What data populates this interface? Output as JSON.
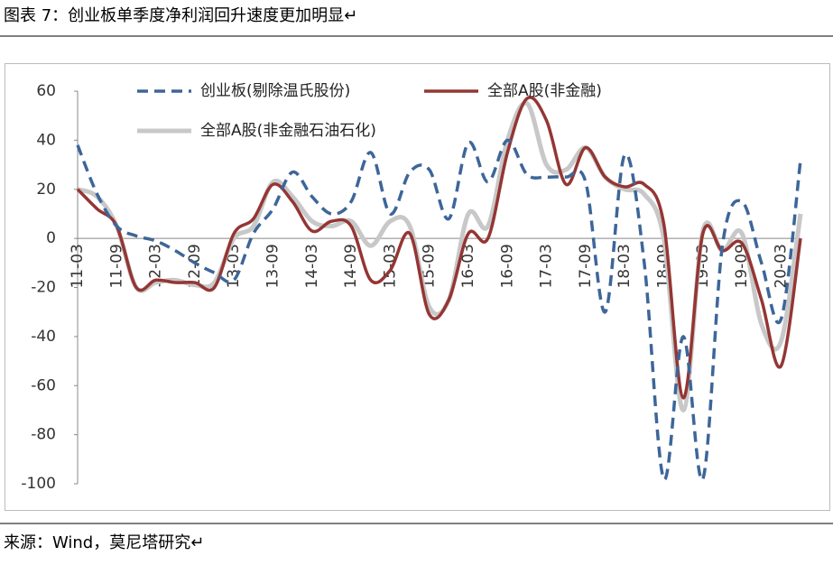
{
  "title": "图表 7：创业板单季度净利润回升速度更加明显↵",
  "source": "来源：Wind，莫尼塔研究↵",
  "chart_data": {
    "type": "line",
    "categories": [
      "11-03",
      null,
      "11-09",
      null,
      "12-03",
      null,
      "12-09",
      null,
      "13-03",
      null,
      "13-09",
      null,
      "14-03",
      null,
      "14-09",
      null,
      "15-03",
      null,
      "15-09",
      null,
      "16-03",
      null,
      "16-09",
      null,
      "17-03",
      null,
      "17-09",
      null,
      "18-03",
      null,
      "18-09",
      null,
      "19-03",
      null,
      "19-09",
      null,
      "20-03",
      null
    ],
    "series": [
      {
        "name": "创业板(剔除温氏股份)",
        "color": "#3d6699",
        "dash": true,
        "values": [
          38,
          18,
          5,
          1,
          -1,
          -5,
          -10,
          -14,
          -17,
          2,
          12,
          27,
          17,
          10,
          15,
          35,
          10,
          27,
          28,
          8,
          39,
          23,
          40,
          26,
          25,
          25,
          23,
          -30,
          34,
          -10,
          -98,
          -40,
          -98,
          -3,
          15,
          -10,
          -33,
          32
        ]
      },
      {
        "name": "全部A股(非金融)",
        "color": "#943634",
        "dash": false,
        "values": [
          20,
          12,
          5,
          -20,
          -17,
          -18,
          -18,
          -20,
          2,
          8,
          22,
          15,
          3,
          7,
          5,
          -17,
          -13,
          2,
          -31,
          -25,
          2,
          0,
          35,
          57,
          48,
          22,
          37,
          25,
          21,
          22,
          6,
          -65,
          2,
          -5,
          -2,
          -25,
          -52,
          0
        ]
      },
      {
        "name": "全部A股(非金融石油石化)",
        "color": "#c8c8c8",
        "dash": false,
        "values": [
          20,
          17,
          5,
          -20,
          -18,
          -17,
          -19,
          -18,
          0,
          5,
          23,
          17,
          7,
          5,
          7,
          -3,
          7,
          5,
          -28,
          -25,
          10,
          5,
          40,
          55,
          30,
          28,
          37,
          25,
          20,
          18,
          0,
          -70,
          3,
          -5,
          2,
          -35,
          -42,
          10
        ]
      }
    ],
    "ylim": [
      -100,
      60
    ],
    "yticks": [
      -100,
      -80,
      -60,
      -40,
      -20,
      0,
      20,
      40,
      60
    ],
    "grid": false
  }
}
